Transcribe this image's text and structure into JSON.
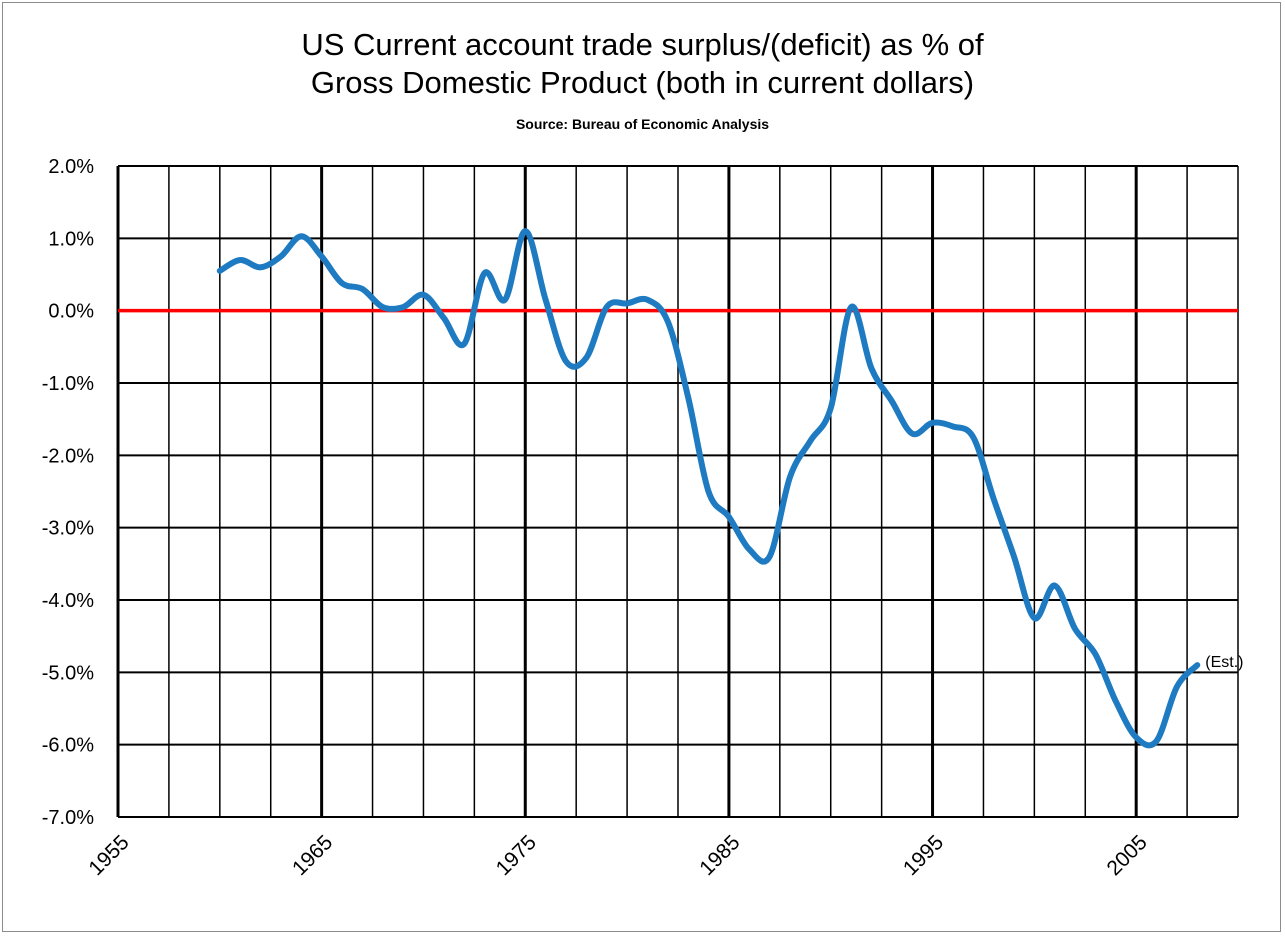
{
  "chart_data": {
    "type": "line",
    "title_line1": "US Current account trade surplus/(deficit) as % of",
    "title_line2": "Gross Domestic Product (both in current dollars)",
    "subtitle": "Source:  Bureau of Economic Analysis",
    "xlabel": "",
    "ylabel": "",
    "xlim": [
      1955,
      2010
    ],
    "ylim": [
      -7.0,
      2.0
    ],
    "x_ticks": [
      "1955",
      "1965",
      "1975",
      "1985",
      "1995",
      "2005"
    ],
    "y_ticks": [
      "2.0%",
      "1.0%",
      "0.0%",
      "-1.0%",
      "-2.0%",
      "-3.0%",
      "-4.0%",
      "-5.0%",
      "-6.0%",
      "-7.0%"
    ],
    "grid": true,
    "reference_line": {
      "y": 0.0,
      "color": "#ff0000"
    },
    "series": [
      {
        "color": "#1f7bc1",
        "x": [
          1960,
          1961,
          1962,
          1963,
          1964,
          1965,
          1966,
          1967,
          1968,
          1969,
          1970,
          1971,
          1972,
          1973,
          1974,
          1975,
          1976,
          1977,
          1978,
          1979,
          1980,
          1981,
          1982,
          1983,
          1984,
          1985,
          1986,
          1987,
          1988,
          1989,
          1990,
          1991,
          1992,
          1993,
          1994,
          1995,
          1996,
          1997,
          1998,
          1999,
          2000,
          2001,
          2002,
          2003,
          2004,
          2005,
          2006,
          2007,
          2008
        ],
        "y": [
          0.55,
          0.7,
          0.6,
          0.75,
          1.03,
          0.75,
          0.38,
          0.3,
          0.05,
          0.05,
          0.22,
          -0.1,
          -0.46,
          0.52,
          0.15,
          1.1,
          0.15,
          -0.7,
          -0.65,
          0.05,
          0.1,
          0.15,
          -0.15,
          -1.2,
          -2.5,
          -2.85,
          -3.3,
          -3.4,
          -2.3,
          -1.8,
          -1.35,
          0.05,
          -0.8,
          -1.25,
          -1.7,
          -1.55,
          -1.6,
          -1.75,
          -2.6,
          -3.4,
          -4.25,
          -3.8,
          -4.4,
          -4.75,
          -5.4,
          -5.9,
          -5.95,
          -5.2,
          -4.9
        ]
      }
    ],
    "annotation": {
      "text": "(Est.)",
      "x": 2008,
      "y": -4.9
    }
  }
}
